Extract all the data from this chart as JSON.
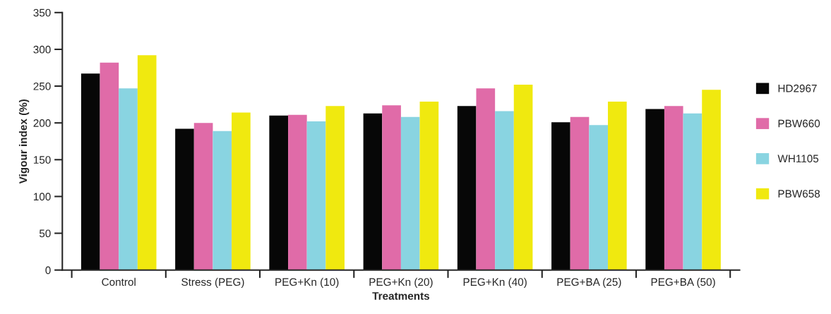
{
  "chart_data": {
    "type": "bar",
    "xlabel": "Treatments",
    "ylabel": "Vigour index (%)",
    "categories": [
      "Control",
      "Stress (PEG)",
      "PEG+Kn (10)",
      "PEG+Kn (20)",
      "PEG+Kn (40)",
      "PEG+BA (25)",
      "PEG+BA (50)"
    ],
    "series": [
      {
        "name": "HD2967",
        "color": "#070707",
        "values": [
          267,
          192,
          210,
          213,
          223,
          201,
          219
        ]
      },
      {
        "name": "PBW660",
        "color": "#e06ba8",
        "values": [
          282,
          200,
          211,
          224,
          247,
          208,
          223
        ]
      },
      {
        "name": "WH1105",
        "color": "#89d4e1",
        "values": [
          247,
          189,
          202,
          208,
          216,
          197,
          213
        ]
      },
      {
        "name": "PBW658",
        "color": "#f0e90f",
        "values": [
          292,
          214,
          223,
          229,
          252,
          229,
          245
        ]
      }
    ],
    "ylim": [
      0,
      350
    ],
    "yticks": [
      0,
      50,
      100,
      150,
      200,
      250,
      300,
      350
    ],
    "grid": false,
    "legend": "right"
  }
}
